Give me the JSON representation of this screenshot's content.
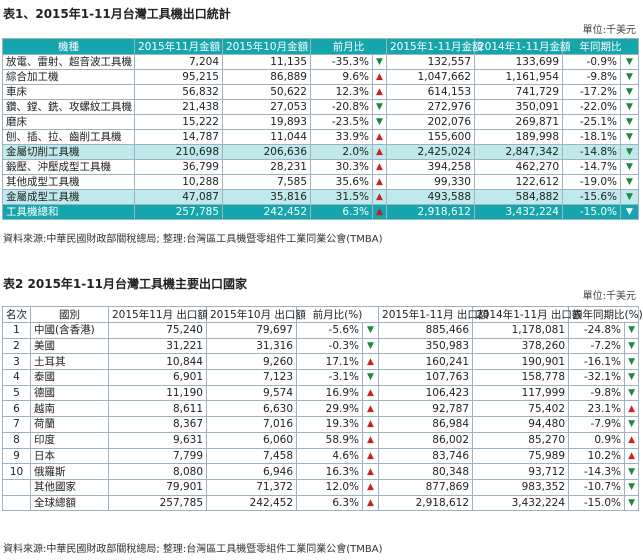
{
  "table1": {
    "title": "表1、2015年1-11月台灣工具機出口統計",
    "unit": "單位:千美元",
    "headers": [
      "機種",
      "2015年11月金額",
      "2015年10月金額",
      "前月比",
      "",
      "2015年1-11月金額",
      "2014年1-11月金額",
      "年同期比",
      ""
    ],
    "rows": [
      {
        "name": "放電、雷射、超音波工具機",
        "nov": "7,204",
        "oct": "11,135",
        "mom": "-35.3%",
        "mom_dir": "down",
        "ytd15": "132,557",
        "ytd14": "133,699",
        "yoy": "-0.9%",
        "yoy_dir": "down"
      },
      {
        "name": "綜合加工機",
        "nov": "95,215",
        "oct": "86,889",
        "mom": "9.6%",
        "mom_dir": "up",
        "ytd15": "1,047,662",
        "ytd14": "1,161,954",
        "yoy": "-9.8%",
        "yoy_dir": "down"
      },
      {
        "name": "車床",
        "nov": "56,832",
        "oct": "50,622",
        "mom": "12.3%",
        "mom_dir": "up",
        "ytd15": "614,153",
        "ytd14": "741,729",
        "yoy": "-17.2%",
        "yoy_dir": "down"
      },
      {
        "name": "鑽、鏜、銑、攻螺紋工具機",
        "nov": "21,438",
        "oct": "27,053",
        "mom": "-20.8%",
        "mom_dir": "down",
        "ytd15": "272,976",
        "ytd14": "350,091",
        "yoy": "-22.0%",
        "yoy_dir": "down"
      },
      {
        "name": "磨床",
        "nov": "15,222",
        "oct": "19,893",
        "mom": "-23.5%",
        "mom_dir": "down",
        "ytd15": "202,076",
        "ytd14": "269,871",
        "yoy": "-25.1%",
        "yoy_dir": "down"
      },
      {
        "name": "刨、插、拉、齒削工具機",
        "nov": "14,787",
        "oct": "11,044",
        "mom": "33.9%",
        "mom_dir": "up",
        "ytd15": "155,600",
        "ytd14": "189,998",
        "yoy": "-18.1%",
        "yoy_dir": "down"
      },
      {
        "name": "金屬切削工具機",
        "nov": "210,698",
        "oct": "206,636",
        "mom": "2.0%",
        "mom_dir": "up",
        "ytd15": "2,425,024",
        "ytd14": "2,847,342",
        "yoy": "-14.8%",
        "yoy_dir": "down",
        "highlight": true
      },
      {
        "name": "鍛壓、沖壓成型工具機",
        "nov": "36,799",
        "oct": "28,231",
        "mom": "30.3%",
        "mom_dir": "up",
        "ytd15": "394,258",
        "ytd14": "462,270",
        "yoy": "-14.7%",
        "yoy_dir": "down"
      },
      {
        "name": "其他成型工具機",
        "nov": "10,288",
        "oct": "7,585",
        "mom": "35.6%",
        "mom_dir": "up",
        "ytd15": "99,330",
        "ytd14": "122,612",
        "yoy": "-19.0%",
        "yoy_dir": "down"
      },
      {
        "name": "金屬成型工具機",
        "nov": "47,087",
        "oct": "35,816",
        "mom": "31.5%",
        "mom_dir": "up",
        "ytd15": "493,588",
        "ytd14": "584,882",
        "yoy": "-15.6%",
        "yoy_dir": "down",
        "highlight": true
      },
      {
        "name": "工具機總和",
        "nov": "257,785",
        "oct": "242,452",
        "mom": "6.3%",
        "mom_dir": "up",
        "ytd15": "2,918,612",
        "ytd14": "3,432,224",
        "yoy": "-15.0%",
        "yoy_dir": "down",
        "total": true
      }
    ],
    "source": "資料來源:中華民國財政部關稅總局; 整理:台灣區工具機暨零組件工業同業公會(TMBA)"
  },
  "table2": {
    "title": "表2 2015年1-11月台灣工具機主要出口國家",
    "unit": "單位:千美元",
    "headers": [
      "名次",
      "國別",
      "2015年11月 出口額",
      "2015年10月 出口額",
      "前月比(%)",
      "",
      "2015年1-11月 出口額",
      "2014年1-11月 出口額",
      "去年同期比(%)",
      ""
    ],
    "rows": [
      {
        "rank": "1",
        "country": "中國(含香港)",
        "nov": "75,240",
        "oct": "79,697",
        "mom": "-5.6%",
        "mom_dir": "down",
        "ytd15": "885,466",
        "ytd14": "1,178,081",
        "yoy": "-24.8%",
        "yoy_dir": "down"
      },
      {
        "rank": "2",
        "country": "美國",
        "nov": "31,221",
        "oct": "31,316",
        "mom": "-0.3%",
        "mom_dir": "down",
        "ytd15": "350,983",
        "ytd14": "378,260",
        "yoy": "-7.2%",
        "yoy_dir": "down"
      },
      {
        "rank": "3",
        "country": "土耳其",
        "nov": "10,844",
        "oct": "9,260",
        "mom": "17.1%",
        "mom_dir": "up",
        "ytd15": "160,241",
        "ytd14": "190,901",
        "yoy": "-16.1%",
        "yoy_dir": "down"
      },
      {
        "rank": "4",
        "country": "泰國",
        "nov": "6,901",
        "oct": "7,123",
        "mom": "-3.1%",
        "mom_dir": "down",
        "ytd15": "107,763",
        "ytd14": "158,778",
        "yoy": "-32.1%",
        "yoy_dir": "down"
      },
      {
        "rank": "5",
        "country": "德國",
        "nov": "11,190",
        "oct": "9,574",
        "mom": "16.9%",
        "mom_dir": "up",
        "ytd15": "106,423",
        "ytd14": "117,999",
        "yoy": "-9.8%",
        "yoy_dir": "down"
      },
      {
        "rank": "6",
        "country": "越南",
        "nov": "8,611",
        "oct": "6,630",
        "mom": "29.9%",
        "mom_dir": "up",
        "ytd15": "92,787",
        "ytd14": "75,402",
        "yoy": "23.1%",
        "yoy_dir": "up"
      },
      {
        "rank": "7",
        "country": "荷蘭",
        "nov": "8,367",
        "oct": "7,016",
        "mom": "19.3%",
        "mom_dir": "up",
        "ytd15": "86,984",
        "ytd14": "94,480",
        "yoy": "-7.9%",
        "yoy_dir": "down"
      },
      {
        "rank": "8",
        "country": "印度",
        "nov": "9,631",
        "oct": "6,060",
        "mom": "58.9%",
        "mom_dir": "up",
        "ytd15": "86,002",
        "ytd14": "85,270",
        "yoy": "0.9%",
        "yoy_dir": "up"
      },
      {
        "rank": "9",
        "country": "日本",
        "nov": "7,799",
        "oct": "7,458",
        "mom": "4.6%",
        "mom_dir": "up",
        "ytd15": "83,746",
        "ytd14": "75,989",
        "yoy": "10.2%",
        "yoy_dir": "up"
      },
      {
        "rank": "10",
        "country": "俄羅斯",
        "nov": "8,080",
        "oct": "6,946",
        "mom": "16.3%",
        "mom_dir": "up",
        "ytd15": "80,348",
        "ytd14": "93,712",
        "yoy": "-14.3%",
        "yoy_dir": "down"
      },
      {
        "rank": "",
        "country": "其他國家",
        "nov": "79,901",
        "oct": "71,372",
        "mom": "12.0%",
        "mom_dir": "up",
        "ytd15": "877,869",
        "ytd14": "983,352",
        "yoy": "-10.7%",
        "yoy_dir": "down"
      },
      {
        "rank": "",
        "country": "全球總額",
        "nov": "257,785",
        "oct": "242,452",
        "mom": "6.3%",
        "mom_dir": "up",
        "ytd15": "2,918,612",
        "ytd14": "3,432,224",
        "yoy": "-15.0%",
        "yoy_dir": "down"
      }
    ],
    "source": "資料來源:中華民國財政部關稅總局; 整理:台灣區工具機暨零組件工業同業公會(TMBA)"
  },
  "icons": {
    "up": "▲",
    "down": "▼"
  }
}
